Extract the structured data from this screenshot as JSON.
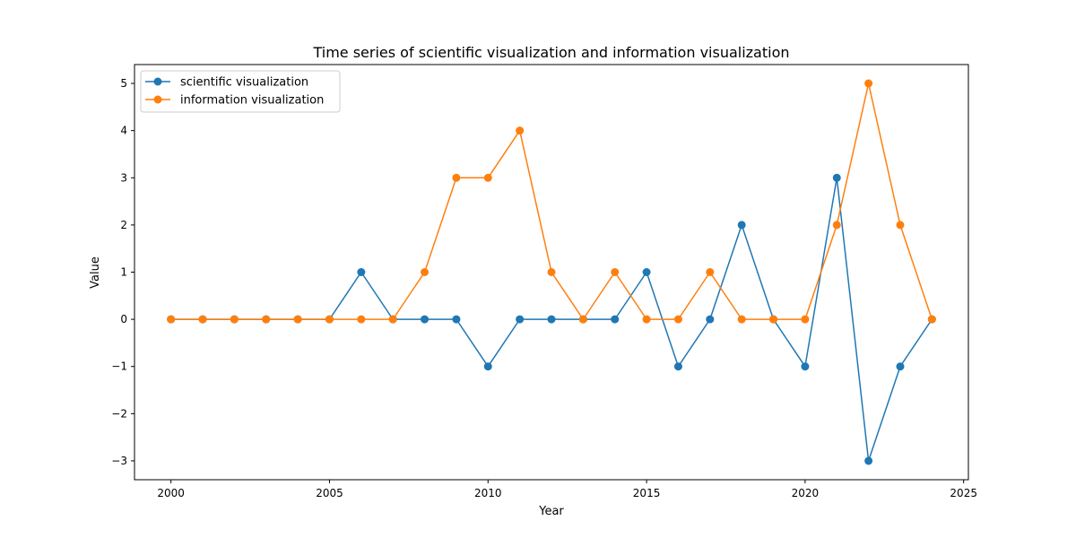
{
  "chart_data": {
    "type": "line",
    "title": "Time series of scientific visualization and information visualization",
    "xlabel": "Year",
    "ylabel": "Value",
    "x": [
      2000,
      2001,
      2002,
      2003,
      2004,
      2005,
      2006,
      2007,
      2008,
      2009,
      2010,
      2011,
      2012,
      2013,
      2014,
      2015,
      2016,
      2017,
      2018,
      2019,
      2020,
      2021,
      2022,
      2023,
      2024
    ],
    "series": [
      {
        "name": "scientific visualization",
        "color": "#1f77b4",
        "values": [
          0,
          0,
          0,
          0,
          0,
          0,
          1,
          0,
          0,
          0,
          -1,
          0,
          0,
          0,
          0,
          1,
          -1,
          0,
          2,
          0,
          -1,
          3,
          -3,
          -1,
          0
        ]
      },
      {
        "name": "information visualization",
        "color": "#ff7f0e",
        "values": [
          0,
          0,
          0,
          0,
          0,
          0,
          0,
          0,
          1,
          3,
          3,
          4,
          1,
          0,
          1,
          0,
          0,
          1,
          0,
          0,
          0,
          2,
          5,
          2,
          0
        ]
      }
    ],
    "xlim": [
      1998.85,
      2025.15
    ],
    "ylim": [
      -3.4,
      5.4
    ],
    "xticks": [
      2000,
      2005,
      2010,
      2015,
      2020,
      2025
    ],
    "yticks": [
      -3,
      -2,
      -1,
      0,
      1,
      2,
      3,
      4,
      5
    ],
    "xtick_labels": [
      "2000",
      "2005",
      "2010",
      "2015",
      "2020",
      "2025"
    ],
    "ytick_labels": [
      "−3",
      "−2",
      "−1",
      "0",
      "1",
      "2",
      "3",
      "4",
      "5"
    ],
    "grid": false,
    "legend_position": "top-left"
  }
}
